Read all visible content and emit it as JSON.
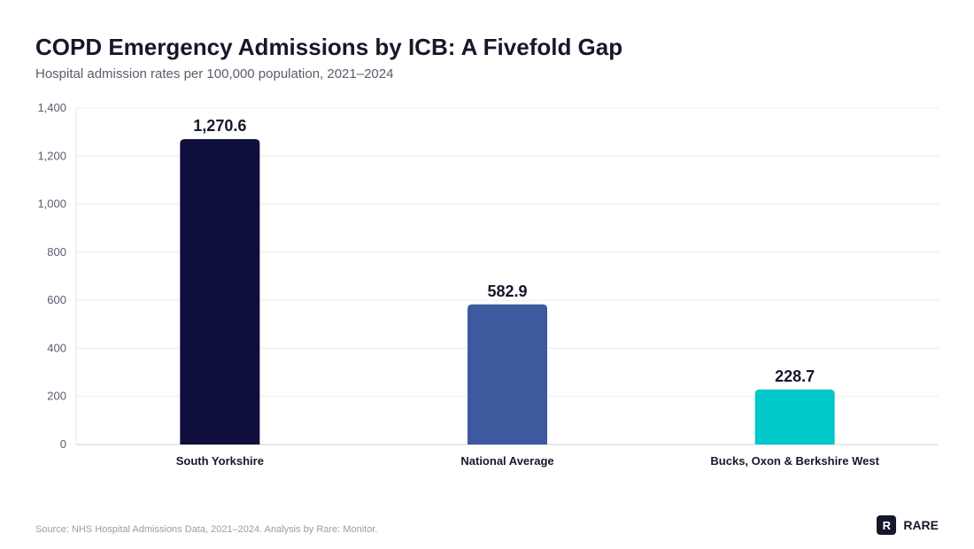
{
  "header": {
    "title": "COPD Emergency Admissions by ICB: A Fivefold Gap",
    "subtitle": "Hospital admission rates per 100,000 population, 2021–2024"
  },
  "footer": {
    "source": "Source: NHS Hospital Admissions Data, 2021–2024. Analysis by Rare: Monitor.",
    "brand_mark": "R",
    "brand_name": "RARE"
  },
  "chart_data": {
    "type": "bar",
    "title": "COPD Emergency Admissions by ICB: A Fivefold Gap",
    "subtitle": "Hospital admission rates per 100,000 population, 2021–2024",
    "categories": [
      "South Yorkshire",
      "National Average",
      "Bucks, Oxon & Berkshire West"
    ],
    "values": [
      1270.6,
      582.9,
      228.7
    ],
    "value_labels": [
      "1,270.6",
      "582.9",
      "228.7"
    ],
    "colors": [
      "#0f0f3d",
      "#3d5a9e",
      "#00c8c8"
    ],
    "ylim": [
      0,
      1400
    ],
    "yticks": [
      0,
      200,
      400,
      600,
      800,
      1000,
      1200,
      1400
    ],
    "ytick_labels": [
      "0",
      "200",
      "400",
      "600",
      "800",
      "1,000",
      "1,200",
      "1,400"
    ],
    "xlabel": "",
    "ylabel": "",
    "grid": true,
    "legend": "none"
  }
}
